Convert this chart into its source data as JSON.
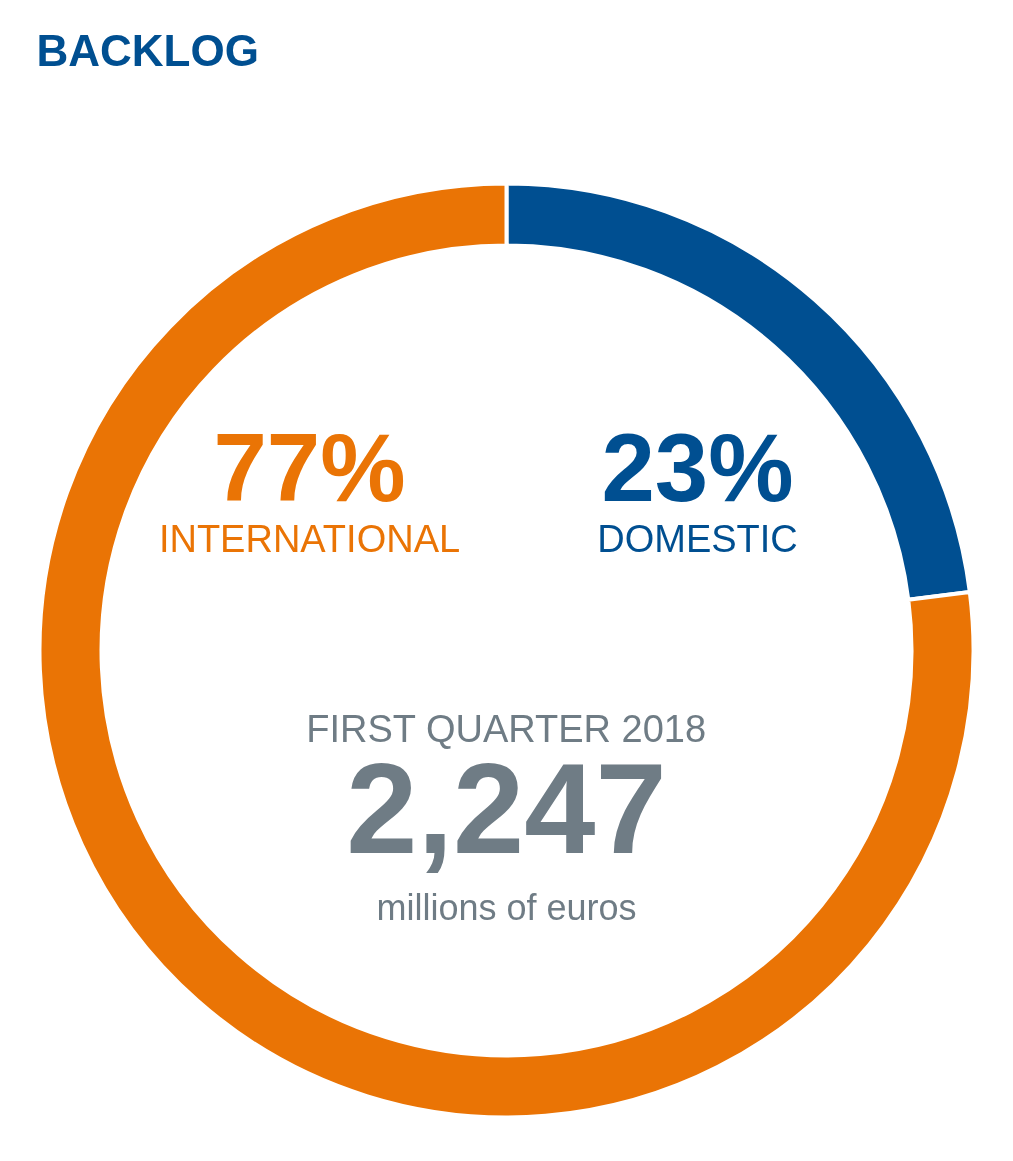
{
  "chart_data": {
    "type": "donut",
    "title": "BACKLOG",
    "categories": [
      "DOMESTIC",
      "INTERNATIONAL"
    ],
    "values": [
      23,
      77
    ],
    "colors": [
      "#004f91",
      "#ea7405"
    ],
    "value_labels": [
      "23%",
      "77%"
    ],
    "annotations": [
      "FIRST QUARTER 2018",
      "2,247",
      "millions of euros"
    ]
  }
}
